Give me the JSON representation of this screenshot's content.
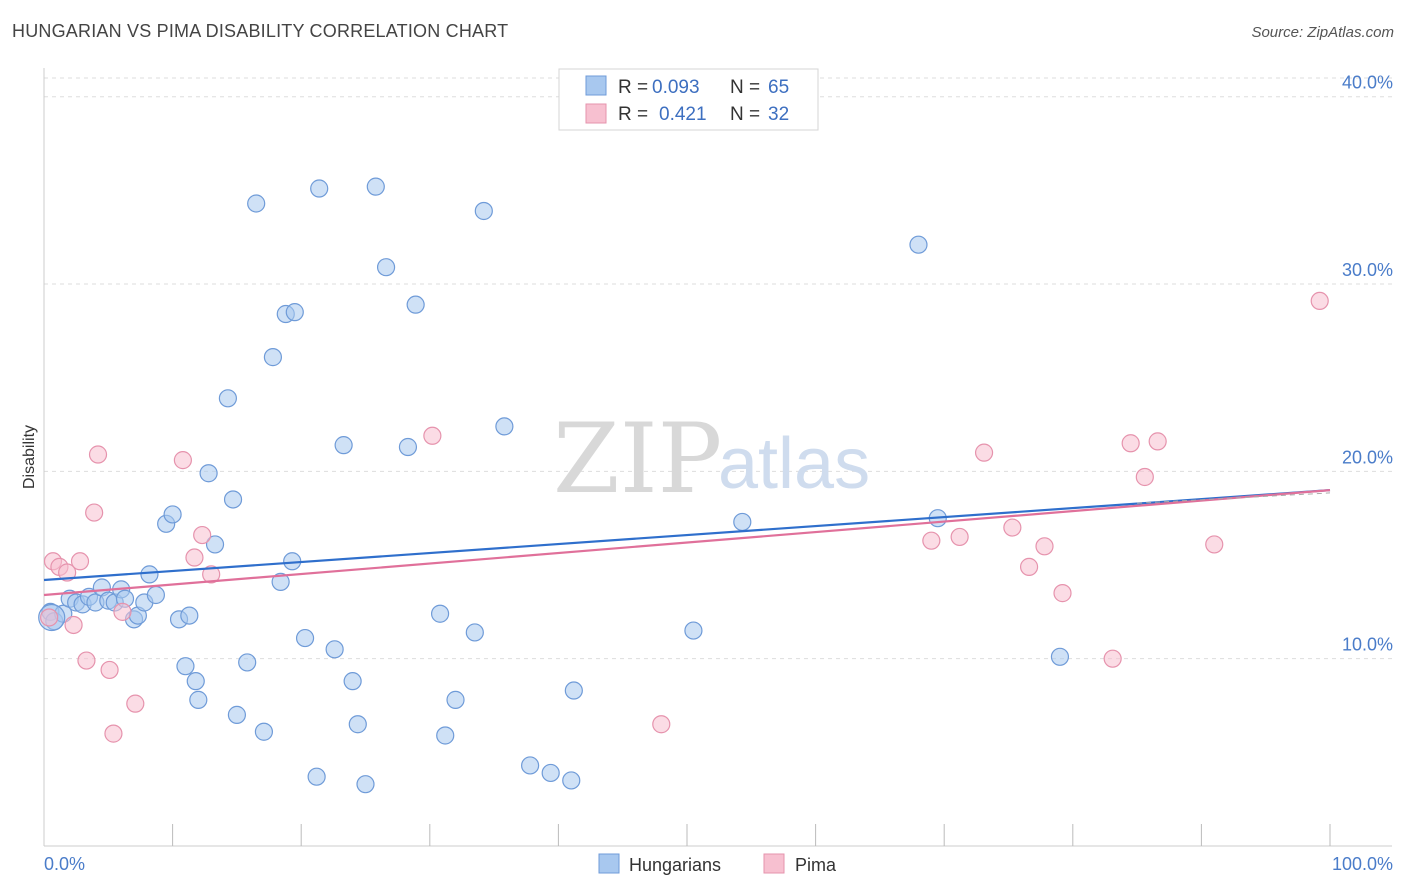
{
  "title": "HUNGARIAN VS PIMA DISABILITY CORRELATION CHART",
  "source": "Source: ZipAtlas.com",
  "watermark": {
    "zip": "ZIP",
    "atlas": "atlas"
  },
  "colors": {
    "blue_fill": "#a8c8ef",
    "blue_stroke": "#6f9bd8",
    "blue_line": "#2f6fcc",
    "pink_fill": "#f7c0d0",
    "pink_stroke": "#e693ad",
    "pink_line": "#e0709a",
    "grid": "#dddddd",
    "tick_text": "#4a7cc9"
  },
  "legend": {
    "rows": [
      {
        "r_label": "R = ",
        "r_value": "0.093",
        "n_label": "N = ",
        "n_value": "65"
      },
      {
        "r_label": "R = ",
        "r_value": "0.421",
        "n_label": "N = ",
        "n_value": "32"
      }
    ]
  },
  "bottom_legend": [
    "Hungarians",
    "Pima"
  ],
  "chart_data": {
    "type": "scatter",
    "title": "HUNGARIAN VS PIMA DISABILITY CORRELATION CHART",
    "xlabel": "",
    "ylabel": "Disability",
    "xlim": [
      0,
      100
    ],
    "ylim": [
      0,
      41
    ],
    "x_tick_labels": [
      "0.0%",
      "100.0%"
    ],
    "y_ticks": [
      10,
      20,
      30,
      40
    ],
    "y_tick_labels": [
      "10.0%",
      "20.0%",
      "30.0%",
      "40.0%"
    ],
    "grid": true,
    "legend_position": "top-center",
    "series": [
      {
        "name": "Hungarians",
        "R": 0.093,
        "N": 65,
        "trend": {
          "x": [
            0,
            100
          ],
          "y": [
            14.2,
            19.0
          ]
        },
        "points": [
          [
            0.5,
            12.5
          ],
          [
            0.8,
            12.0
          ],
          [
            1.5,
            12.4
          ],
          [
            2.0,
            13.2
          ],
          [
            2.5,
            13.0
          ],
          [
            3.0,
            12.9
          ],
          [
            3.5,
            13.3
          ],
          [
            4.0,
            13.0
          ],
          [
            4.5,
            13.8
          ],
          [
            5.0,
            13.1
          ],
          [
            5.5,
            13.0
          ],
          [
            6.0,
            13.7
          ],
          [
            6.3,
            13.2
          ],
          [
            7.0,
            12.1
          ],
          [
            7.3,
            12.3
          ],
          [
            7.8,
            13.0
          ],
          [
            8.2,
            14.5
          ],
          [
            8.7,
            13.4
          ],
          [
            9.5,
            17.2
          ],
          [
            10.0,
            17.7
          ],
          [
            10.5,
            12.1
          ],
          [
            11.0,
            9.6
          ],
          [
            11.3,
            12.3
          ],
          [
            11.8,
            8.8
          ],
          [
            12.0,
            7.8
          ],
          [
            12.8,
            19.9
          ],
          [
            13.3,
            16.1
          ],
          [
            14.3,
            23.9
          ],
          [
            14.7,
            18.5
          ],
          [
            15.0,
            7.0
          ],
          [
            15.8,
            9.8
          ],
          [
            16.5,
            34.3
          ],
          [
            17.1,
            6.1
          ],
          [
            17.8,
            26.1
          ],
          [
            18.4,
            14.1
          ],
          [
            18.8,
            28.4
          ],
          [
            19.5,
            28.5
          ],
          [
            19.3,
            15.2
          ],
          [
            20.3,
            11.1
          ],
          [
            21.2,
            3.7
          ],
          [
            21.4,
            35.1
          ],
          [
            22.6,
            10.5
          ],
          [
            23.3,
            21.4
          ],
          [
            24.0,
            8.8
          ],
          [
            24.4,
            6.5
          ],
          [
            25.0,
            3.3
          ],
          [
            25.8,
            35.2
          ],
          [
            26.6,
            30.9
          ],
          [
            28.3,
            21.3
          ],
          [
            28.9,
            28.9
          ],
          [
            30.8,
            12.4
          ],
          [
            31.2,
            5.9
          ],
          [
            32.0,
            7.8
          ],
          [
            33.5,
            11.4
          ],
          [
            34.2,
            33.9
          ],
          [
            35.8,
            22.4
          ],
          [
            37.8,
            4.3
          ],
          [
            39.4,
            3.9
          ],
          [
            41.0,
            3.5
          ],
          [
            41.2,
            8.3
          ],
          [
            50.5,
            11.5
          ],
          [
            54.3,
            17.3
          ],
          [
            68.0,
            32.1
          ],
          [
            69.5,
            17.5
          ],
          [
            79.0,
            10.1
          ]
        ]
      },
      {
        "name": "Pima",
        "R": 0.421,
        "N": 32,
        "trend": {
          "x": [
            0,
            100
          ],
          "y": [
            13.4,
            19.0
          ]
        },
        "points": [
          [
            0.7,
            15.2
          ],
          [
            1.2,
            14.9
          ],
          [
            1.8,
            14.6
          ],
          [
            2.3,
            11.8
          ],
          [
            2.8,
            15.2
          ],
          [
            3.3,
            9.9
          ],
          [
            3.9,
            17.8
          ],
          [
            4.2,
            20.9
          ],
          [
            5.1,
            9.4
          ],
          [
            5.4,
            6.0
          ],
          [
            6.1,
            12.5
          ],
          [
            7.1,
            7.6
          ],
          [
            10.8,
            20.6
          ],
          [
            11.7,
            15.4
          ],
          [
            12.3,
            16.6
          ],
          [
            13.0,
            14.5
          ],
          [
            30.2,
            21.9
          ],
          [
            48.0,
            6.5
          ],
          [
            69.0,
            16.3
          ],
          [
            71.2,
            16.5
          ],
          [
            73.1,
            21.0
          ],
          [
            75.3,
            17.0
          ],
          [
            76.6,
            14.9
          ],
          [
            77.8,
            16.0
          ],
          [
            79.2,
            13.5
          ],
          [
            83.1,
            10.0
          ],
          [
            84.5,
            21.5
          ],
          [
            85.6,
            19.7
          ],
          [
            86.6,
            21.6
          ],
          [
            91.0,
            16.1
          ],
          [
            99.2,
            29.1
          ],
          [
            0.4,
            12.2
          ]
        ]
      }
    ]
  }
}
